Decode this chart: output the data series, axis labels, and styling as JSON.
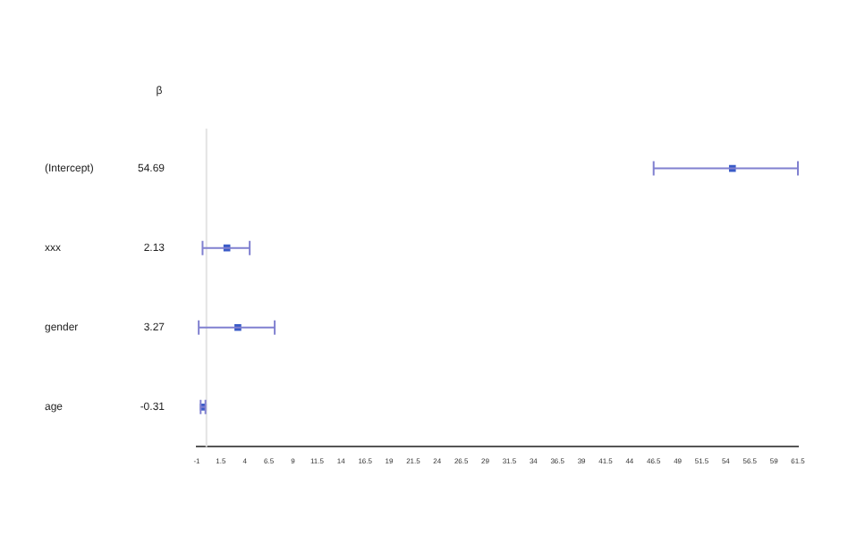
{
  "chart_data": {
    "type": "scatter",
    "orientation": "horizontal",
    "categories": [
      "(Intercept)",
      "xxx",
      "gender",
      "age"
    ],
    "values": [
      54.69,
      2.13,
      3.27,
      -0.31
    ],
    "errors": [
      [
        46.5,
        61.5
      ],
      [
        -0.4,
        4.5
      ],
      [
        -0.8,
        7.1
      ],
      [
        -0.6,
        -0.1
      ]
    ],
    "value_labels": [
      "54.69",
      "2.13",
      "3.27",
      "-0.31"
    ],
    "color": "#3a5bc7",
    "marker": "square",
    "annotations": [
      "β"
    ],
    "ref_lines": [
      {
        "axis": "x",
        "value": 0,
        "color": "#e3e3e3"
      }
    ],
    "xlim": [
      -1,
      61.5
    ],
    "xticks": [
      -1,
      1.5,
      4,
      6.5,
      9,
      11.5,
      14,
      16.5,
      19,
      21.5,
      24,
      26.5,
      29,
      31.5,
      34,
      36.5,
      39,
      41.5,
      44,
      46.5,
      49,
      51.5,
      54,
      56.5,
      59,
      61.5
    ],
    "grid": false,
    "legend": false
  }
}
